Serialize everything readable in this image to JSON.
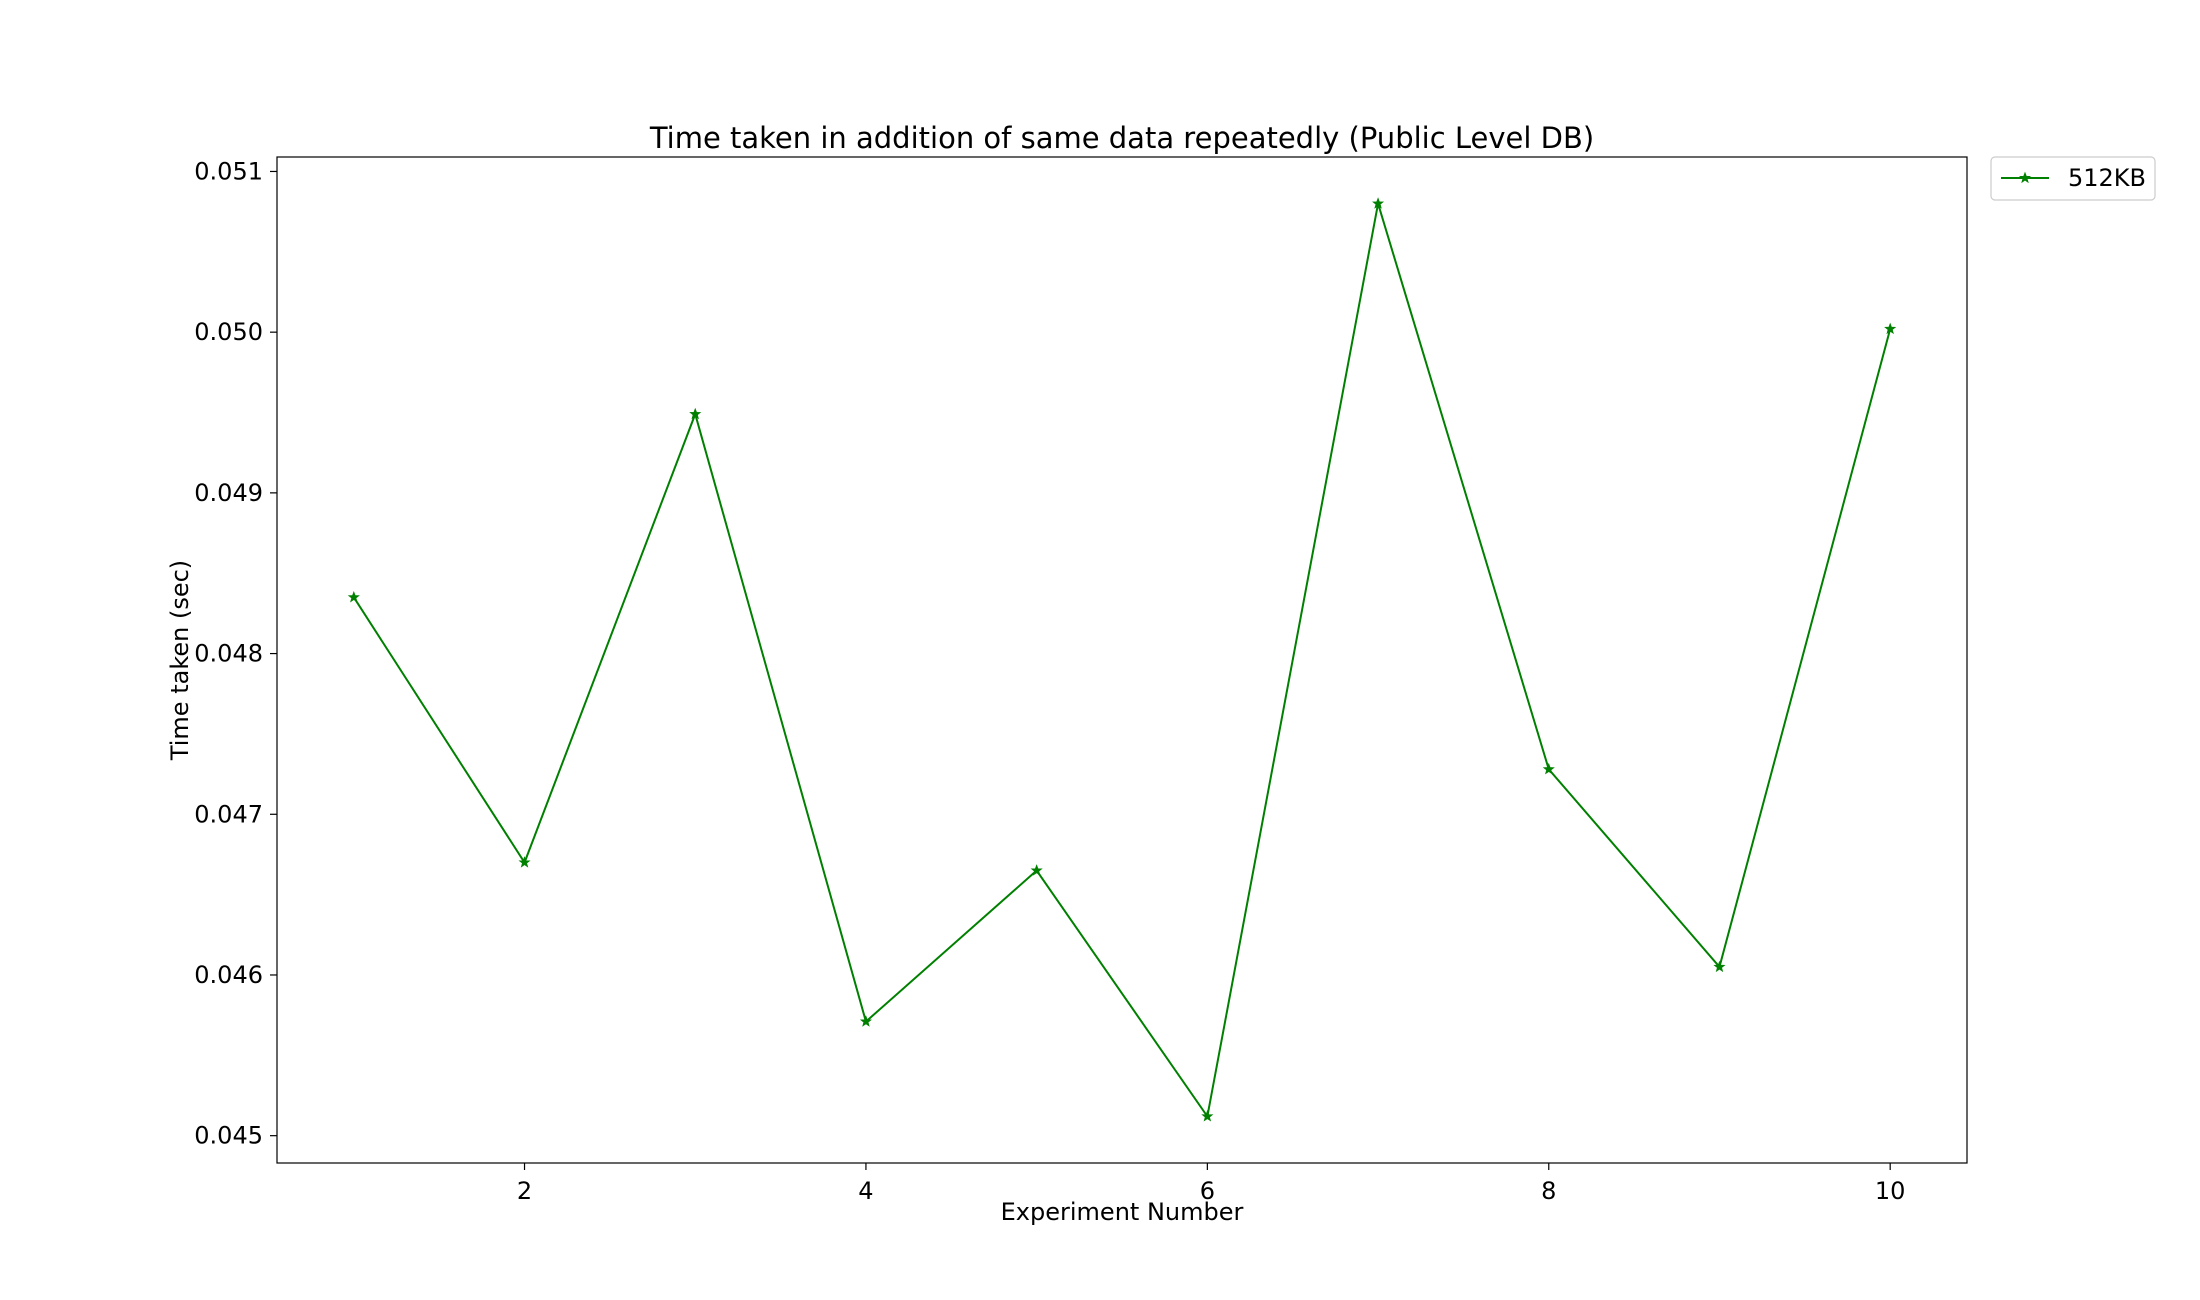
{
  "chart_data": {
    "type": "line",
    "title": "Time taken in addition of same data repeatedly (Public Level DB)",
    "xlabel": "Experiment Number",
    "ylabel": "Time taken (sec)",
    "x": [
      1,
      2,
      3,
      4,
      5,
      6,
      7,
      8,
      9,
      10
    ],
    "xlim": [
      0.55,
      10.45
    ],
    "ylim": [
      0.04483,
      0.05109
    ],
    "xticks": [
      2,
      4,
      6,
      8,
      10
    ],
    "xtick_labels": [
      "2",
      "4",
      "6",
      "8",
      "10"
    ],
    "yticks": [
      0.045,
      0.046,
      0.047,
      0.048,
      0.049,
      0.05,
      0.051
    ],
    "ytick_labels": [
      "0.045",
      "0.046",
      "0.047",
      "0.048",
      "0.049",
      "0.050",
      "0.051"
    ],
    "grid": false,
    "legend_position": "outside-top-right",
    "series": [
      {
        "name": "512KB",
        "color": "#008000",
        "marker": "star",
        "values": [
          0.04835,
          0.0467,
          0.04949,
          0.04571,
          0.04665,
          0.04512,
          0.0508,
          0.04728,
          0.04605,
          0.05002
        ]
      }
    ]
  }
}
